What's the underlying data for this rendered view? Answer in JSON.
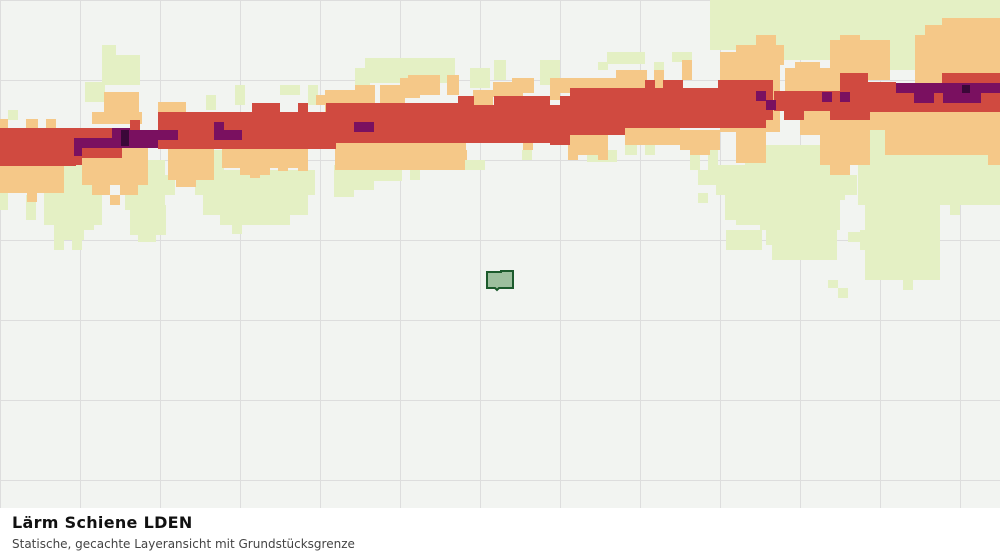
{
  "map": {
    "layer_title": "Lärm Schiene LDEN",
    "subtitle": "Statische, gecachte Layeransicht mit Grundstücksgrenze",
    "noise_class_colors": {
      "lowest": "#e4f0c4",
      "low": "#f5c888",
      "high": "#d04a40",
      "very_high": "#7a1060",
      "extreme": "#3a0838"
    },
    "parcel": {
      "fill": "#9dbf9e",
      "stroke": "#1c5a2c"
    },
    "background": "#f2f4f1",
    "grid_color": "#dddddd"
  }
}
